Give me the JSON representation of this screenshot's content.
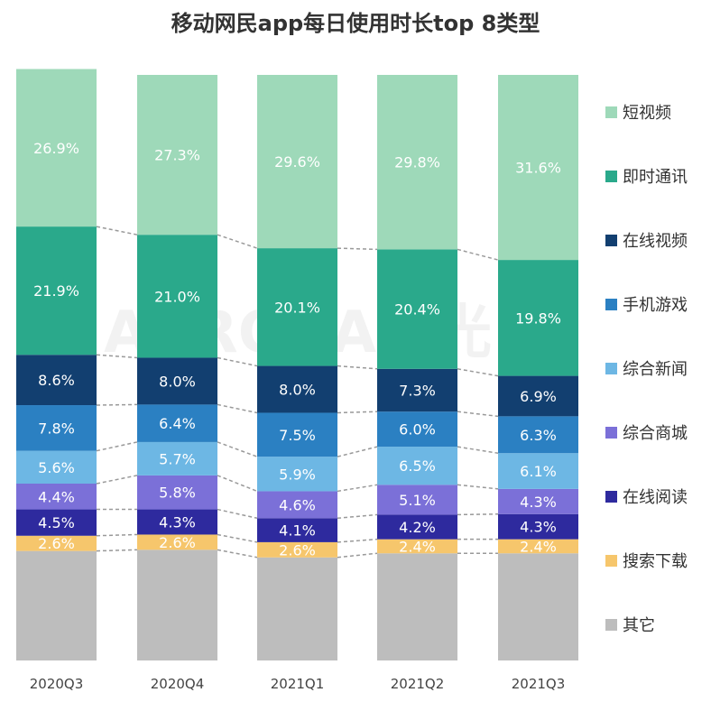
{
  "chart_data": {
    "type": "bar",
    "stacked": true,
    "title": "移动网民app每日使用时长top 8类型",
    "categories": [
      "2020Q3",
      "2020Q4",
      "2021Q1",
      "2021Q2",
      "2021Q3"
    ],
    "series": [
      {
        "name": "其它",
        "color": "#bdbdbd",
        "values": [
          18.7,
          18.9,
          17.6,
          18.3,
          18.3
        ],
        "labeled": false
      },
      {
        "name": "搜索下载",
        "color": "#f6c66c",
        "values": [
          2.6,
          2.6,
          2.6,
          2.4,
          2.4
        ],
        "labeled": true
      },
      {
        "name": "在线阅读",
        "color": "#2e2a9e",
        "values": [
          4.5,
          4.3,
          4.1,
          4.2,
          4.3
        ],
        "labeled": true
      },
      {
        "name": "综合商城",
        "color": "#7b70d8",
        "values": [
          4.4,
          5.8,
          4.6,
          5.1,
          4.3
        ],
        "labeled": true
      },
      {
        "name": "综合新闻",
        "color": "#6db7e4",
        "values": [
          5.6,
          5.7,
          5.9,
          6.5,
          6.1
        ],
        "labeled": true
      },
      {
        "name": "手机游戏",
        "color": "#2b80c2",
        "values": [
          7.8,
          6.4,
          7.5,
          6.0,
          6.3
        ],
        "labeled": true
      },
      {
        "name": "在线视频",
        "color": "#123f70",
        "values": [
          8.6,
          8.0,
          8.0,
          7.3,
          6.9
        ],
        "labeled": true
      },
      {
        "name": "即时通讯",
        "color": "#2aa98b",
        "values": [
          21.9,
          21.0,
          20.1,
          20.4,
          19.8
        ],
        "labeled": true
      },
      {
        "name": "短视频",
        "color": "#9ed9b9",
        "values": [
          26.9,
          27.3,
          29.6,
          29.8,
          31.6
        ],
        "labeled": true
      }
    ],
    "legend_order": [
      "短视频",
      "即时通讯",
      "在线视频",
      "手机游戏",
      "综合新闻",
      "综合商城",
      "在线阅读",
      "搜索下载",
      "其它"
    ],
    "legend_position": "right",
    "value_format": "percent",
    "ylim": [
      0,
      100
    ],
    "grid": false,
    "connector_lines": "dashed"
  },
  "watermark": "AURORA极光"
}
